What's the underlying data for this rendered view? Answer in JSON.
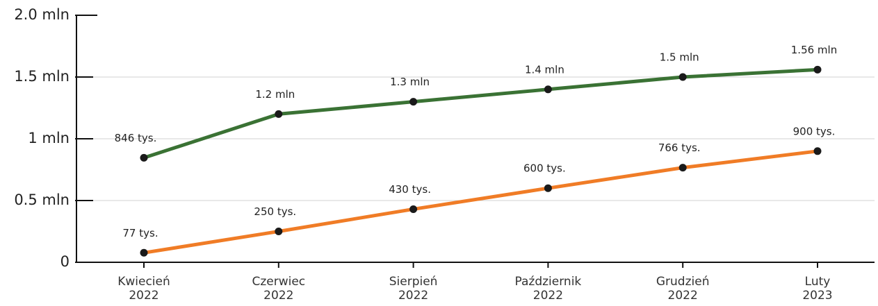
{
  "chart_data": {
    "type": "line",
    "categories": [
      "Kwiecień\n2022",
      "Czerwiec\n2022",
      "Sierpień\n2022",
      "Październik\n2022",
      "Grudzień\n2022",
      "Luty\n2023"
    ],
    "series": [
      {
        "color": "#3a7234",
        "values": [
          0.846,
          1.2,
          1.3,
          1.4,
          1.5,
          1.56
        ],
        "value_labels": [
          "846 tys.",
          "1.2 mln",
          "1.3 mln",
          "1.4 mln",
          "1.5 mln",
          "1.56 mln"
        ]
      },
      {
        "color": "#f07c26",
        "values": [
          0.077,
          0.25,
          0.43,
          0.6,
          0.766,
          0.9
        ],
        "value_labels": [
          "77 tys.",
          "250 tys.",
          "430 tys.",
          "600 tys.",
          "766 tys.",
          "900 tys."
        ]
      }
    ],
    "ylim": [
      0,
      2.0
    ],
    "yticks": [
      0,
      {
        "value": 0.5,
        "label": "0.5 mln"
      },
      {
        "value": 1,
        "label": "1 mln"
      },
      {
        "value": 1.5,
        "label": "1.5 mln"
      },
      {
        "value": 2.0,
        "label": "2.0 mln"
      }
    ],
    "grid": true
  }
}
